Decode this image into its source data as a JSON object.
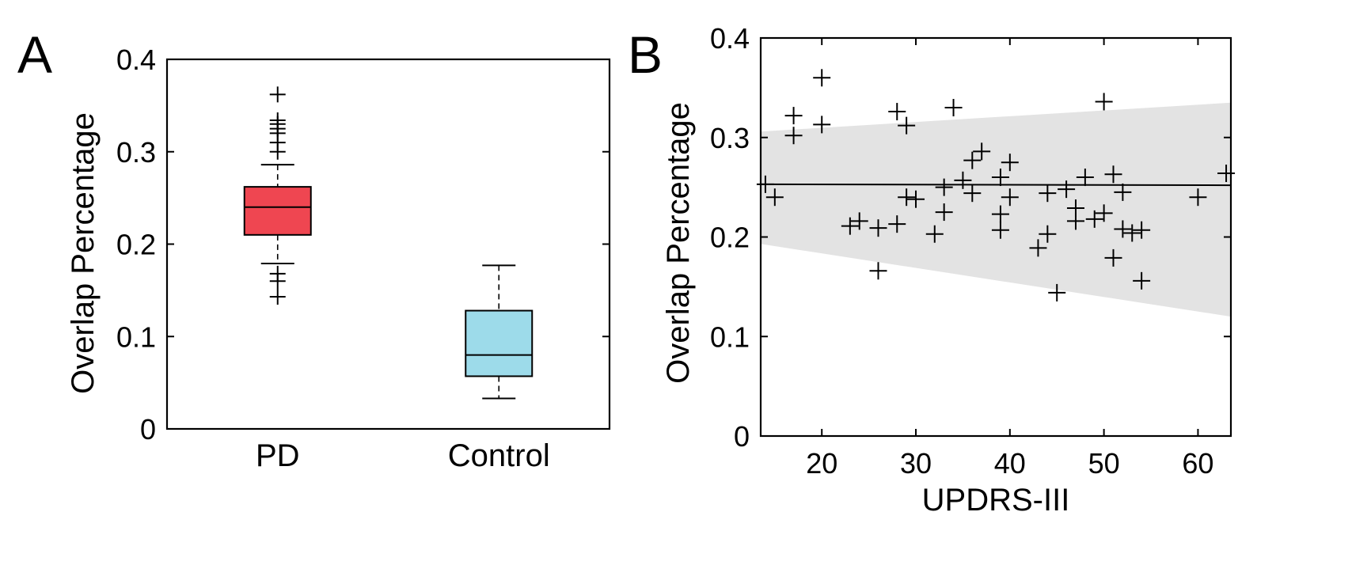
{
  "panels": {
    "a": {
      "letter": "A",
      "ylabel": "Overlap Percentage",
      "yticks": [
        "0",
        "0.1",
        "0.2",
        "0.3",
        "0.4"
      ]
    },
    "b": {
      "letter": "B",
      "ylabel": "Overlap Percentage",
      "xlabel": "UPDRS-III",
      "yticks": [
        "0",
        "0.1",
        "0.2",
        "0.3",
        "0.4"
      ],
      "xticks": [
        "20",
        "30",
        "40",
        "50",
        "60"
      ]
    }
  },
  "chart_data": [
    {
      "type": "box",
      "panel": "A",
      "ylabel": "Overlap Percentage",
      "ylim": [
        0,
        0.4
      ],
      "yticks": [
        0,
        0.1,
        0.2,
        0.3,
        0.4
      ],
      "categories": [
        "PD",
        "Control"
      ],
      "boxes": [
        {
          "category": "PD",
          "q1": 0.21,
          "median": 0.24,
          "q3": 0.262,
          "whisker_low": 0.179,
          "whisker_high": 0.286,
          "outliers": [
            0.362,
            0.334,
            0.33,
            0.325,
            0.32,
            0.31,
            0.3,
            0.168,
            0.16,
            0.143
          ],
          "color": "#ef4651"
        },
        {
          "category": "Control",
          "q1": 0.057,
          "median": 0.08,
          "q3": 0.128,
          "whisker_low": 0.033,
          "whisker_high": 0.177,
          "outliers": [],
          "color": "#9ddbea"
        }
      ]
    },
    {
      "type": "scatter",
      "panel": "B",
      "xlabel": "UPDRS-III",
      "ylabel": "Overlap Percentage",
      "xlim": [
        13.5,
        63.5
      ],
      "ylim": [
        0,
        0.4
      ],
      "xticks": [
        20,
        30,
        40,
        50,
        60
      ],
      "yticks": [
        0,
        0.1,
        0.2,
        0.3,
        0.4
      ],
      "points": [
        [
          14,
          0.253
        ],
        [
          15,
          0.24
        ],
        [
          17,
          0.322
        ],
        [
          17,
          0.302
        ],
        [
          20,
          0.36
        ],
        [
          20,
          0.313
        ],
        [
          23,
          0.211
        ],
        [
          24,
          0.216
        ],
        [
          26,
          0.209
        ],
        [
          26,
          0.166
        ],
        [
          28,
          0.326
        ],
        [
          28,
          0.213
        ],
        [
          29,
          0.312
        ],
        [
          29,
          0.24
        ],
        [
          30,
          0.238
        ],
        [
          32,
          0.203
        ],
        [
          33,
          0.25
        ],
        [
          33,
          0.225
        ],
        [
          34,
          0.33
        ],
        [
          35,
          0.257
        ],
        [
          36,
          0.277
        ],
        [
          36,
          0.244
        ],
        [
          37,
          0.286
        ],
        [
          39,
          0.26
        ],
        [
          39,
          0.223
        ],
        [
          39,
          0.207
        ],
        [
          40,
          0.275
        ],
        [
          40,
          0.24
        ],
        [
          43,
          0.189
        ],
        [
          44,
          0.244
        ],
        [
          44,
          0.203
        ],
        [
          45,
          0.144
        ],
        [
          46,
          0.248
        ],
        [
          47,
          0.229
        ],
        [
          47,
          0.216
        ],
        [
          48,
          0.26
        ],
        [
          49,
          0.218
        ],
        [
          50,
          0.336
        ],
        [
          50,
          0.224
        ],
        [
          51,
          0.263
        ],
        [
          51,
          0.179
        ],
        [
          52,
          0.245
        ],
        [
          52,
          0.208
        ],
        [
          53,
          0.204
        ],
        [
          54,
          0.207
        ],
        [
          54,
          0.156
        ],
        [
          60,
          0.24
        ],
        [
          63,
          0.264
        ]
      ],
      "fit_line": {
        "x": [
          13.5,
          63.5
        ],
        "y": [
          0.253,
          0.252
        ]
      },
      "confidence_band": {
        "x": [
          13.5,
          63.5
        ],
        "lower": [
          0.193,
          0.12
        ],
        "upper": [
          0.306,
          0.335
        ],
        "color": "#e3e3e3"
      }
    }
  ]
}
